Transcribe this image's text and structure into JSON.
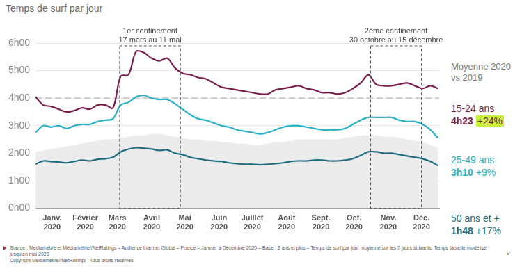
{
  "chart_data": {
    "type": "line",
    "title": "Temps de surf par jour",
    "side_title": "Moyenne 2020 vs 2019",
    "x": [
      1,
      8,
      15,
      22,
      29,
      36,
      43,
      50,
      57,
      64,
      71,
      78,
      85,
      92,
      99,
      106,
      113,
      120,
      127,
      134,
      141,
      148,
      155,
      162,
      169,
      176,
      183,
      190,
      197,
      204,
      211,
      218,
      225,
      232,
      239,
      246,
      253,
      260,
      267,
      274,
      281,
      288,
      295,
      302,
      309,
      316,
      323,
      330,
      337,
      344,
      351,
      358,
      365
    ],
    "xlim": [
      1,
      366
    ],
    "xticks": [
      {
        "value": 16,
        "label": [
          "Janv.",
          "2020"
        ]
      },
      {
        "value": 46,
        "label": [
          "Février",
          "2020"
        ]
      },
      {
        "value": 75,
        "label": [
          "Mars",
          "2020"
        ]
      },
      {
        "value": 106,
        "label": [
          "Avril",
          "2020"
        ]
      },
      {
        "value": 136,
        "label": [
          "Mai",
          "2020"
        ]
      },
      {
        "value": 167,
        "label": [
          "Juin",
          "2020"
        ]
      },
      {
        "value": 197,
        "label": [
          "Juillet",
          "2020"
        ]
      },
      {
        "value": 228,
        "label": [
          "Août",
          "2020"
        ]
      },
      {
        "value": 259,
        "label": [
          "Sept.",
          "2020"
        ]
      },
      {
        "value": 289,
        "label": [
          "Oct.",
          "2020"
        ]
      },
      {
        "value": 320,
        "label": [
          "Nov.",
          "2020"
        ]
      },
      {
        "value": 350,
        "label": [
          "Déc.",
          "2020"
        ]
      }
    ],
    "ylim": [
      0,
      6
    ],
    "yticks": [
      {
        "value": 0,
        "label": "0h00"
      },
      {
        "value": 1,
        "label": "1h00"
      },
      {
        "value": 2,
        "label": "2h00"
      },
      {
        "value": 3,
        "label": "3h00"
      },
      {
        "value": 4,
        "label": "4h00"
      },
      {
        "value": 5,
        "label": "5h00"
      },
      {
        "value": 6,
        "label": "6h00"
      }
    ],
    "grid": true,
    "series": [
      {
        "name": "15-24 ans",
        "color": "#7a1d4f",
        "average_label": "4h23",
        "change_label": "+24%",
        "values": [
          4.05,
          3.75,
          3.7,
          3.6,
          3.5,
          3.55,
          3.65,
          3.6,
          3.75,
          3.75,
          3.65,
          4.8,
          4.85,
          5.7,
          5.65,
          5.45,
          5.35,
          5.45,
          5.1,
          4.9,
          4.85,
          4.75,
          4.7,
          4.55,
          4.4,
          4.35,
          4.3,
          4.25,
          4.2,
          4.15,
          4.15,
          4.3,
          4.35,
          4.4,
          4.45,
          4.35,
          4.3,
          4.2,
          4.2,
          4.15,
          4.2,
          4.35,
          4.55,
          4.85,
          4.5,
          4.45,
          4.45,
          4.5,
          4.55,
          4.45,
          4.35,
          4.45,
          4.35
        ]
      },
      {
        "name": "25-49 ans",
        "color": "#29b1c7",
        "average_label": "3h10",
        "change_label": "+9%",
        "values": [
          2.75,
          3.0,
          2.95,
          3.0,
          2.9,
          3.0,
          3.05,
          3.05,
          3.15,
          3.2,
          3.25,
          3.75,
          3.85,
          4.05,
          4.1,
          4.0,
          3.95,
          3.95,
          3.8,
          3.6,
          3.4,
          3.25,
          3.2,
          3.1,
          3.0,
          2.95,
          2.85,
          2.8,
          2.75,
          2.7,
          2.75,
          2.85,
          2.95,
          3.0,
          3.0,
          2.95,
          2.9,
          2.85,
          2.85,
          2.85,
          2.9,
          3.05,
          3.2,
          3.3,
          3.3,
          3.3,
          3.3,
          3.2,
          3.15,
          3.15,
          3.05,
          2.85,
          2.55
        ]
      },
      {
        "name": "50 ans et +",
        "color": "#1d6c80",
        "average_label": "1h48",
        "change_label": "+17%",
        "values": [
          1.6,
          1.72,
          1.7,
          1.68,
          1.65,
          1.7,
          1.75,
          1.72,
          1.78,
          1.8,
          1.85,
          2.05,
          2.15,
          2.2,
          2.18,
          2.15,
          2.1,
          2.12,
          2.0,
          1.95,
          1.85,
          1.8,
          1.75,
          1.72,
          1.7,
          1.65,
          1.62,
          1.6,
          1.6,
          1.58,
          1.6,
          1.62,
          1.65,
          1.7,
          1.72,
          1.72,
          1.75,
          1.75,
          1.72,
          1.72,
          1.75,
          1.8,
          1.92,
          2.05,
          2.05,
          2.0,
          2.0,
          1.95,
          1.9,
          1.85,
          1.8,
          1.7,
          1.55
        ]
      }
    ],
    "area": {
      "color": "#ececec",
      "values": [
        2.05,
        2.1,
        2.15,
        2.2,
        2.25,
        2.3,
        2.35,
        2.4,
        2.45,
        2.5,
        2.5,
        2.55,
        2.6,
        2.65,
        2.65,
        2.7,
        2.7,
        2.65,
        2.6,
        2.55,
        2.5,
        2.5,
        2.45,
        2.45,
        2.4,
        2.4,
        2.35,
        2.35,
        2.3,
        2.3,
        2.35,
        2.4,
        2.4,
        2.45,
        2.5,
        2.5,
        2.5,
        2.5,
        2.5,
        2.5,
        2.55,
        2.6,
        2.65,
        2.65,
        2.65,
        2.6,
        2.6,
        2.55,
        2.5,
        2.45,
        2.4,
        2.3,
        2.2
      ]
    },
    "reference_line": {
      "value": 4,
      "color": "#d0d0d0"
    },
    "annotations": [
      {
        "label": "1er confinement",
        "sublabel": "17 mars au 11 mai",
        "start": 77,
        "end": 132
      },
      {
        "label": "2ème confinement",
        "sublabel": "30 octobre au 15 décembre",
        "start": 304,
        "end": 350
      }
    ],
    "footer": {
      "source": "Source : Médiamétrie et Médiamétrie//NetRatings – Audience Internet Global – France – Janvier à Décembre 2020 – Base : 2 ans et plus – Temps de surf par jour moyenné sur les 7 jours suivants, Temps tablette modélisé jusqu'en mai 2020",
      "copyright": "Copyright Médiamétrie//NetRatings - Tous droits réservés",
      "page": "9"
    }
  }
}
